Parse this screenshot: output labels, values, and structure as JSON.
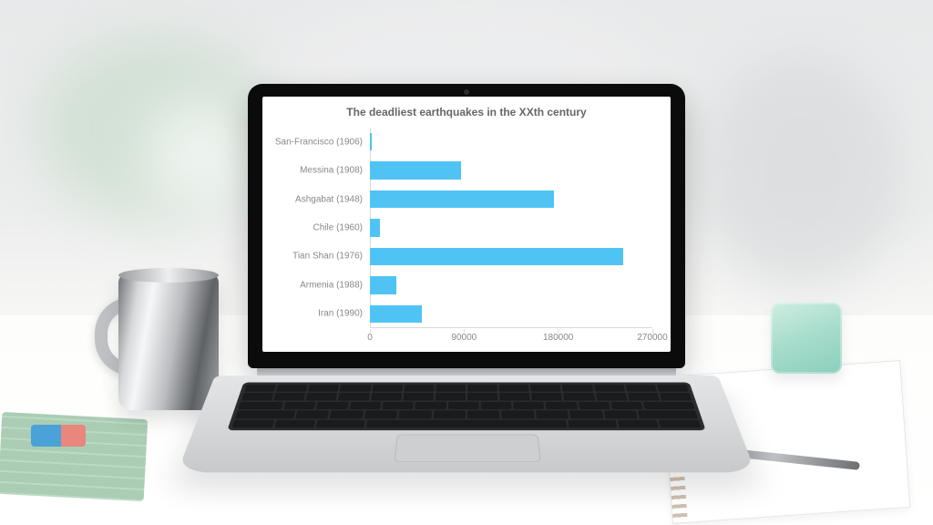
{
  "scene": {
    "background_gradient": [
      "#e8e9ea",
      "#ffffff"
    ],
    "mug_color": "#bfc1c4",
    "speaker_color": "#a6dccb",
    "eraser_colors": [
      "#4aa2d9",
      "#e9867d"
    ],
    "mat_color": "#aacdb4"
  },
  "laptop": {
    "shell_color": "#0b0b0c",
    "base_color": "#d4d6d8",
    "keyboard_color": "#1a1b1c",
    "screen_background": "#ffffff"
  },
  "chart": {
    "type": "bar-horizontal",
    "title": "The deadliest earthquakes in the XXth century",
    "title_fontsize": 12,
    "title_color": "#666666",
    "label_fontsize": 10,
    "label_color": "#888888",
    "bar_color": "#4fc4f4",
    "axis_color": "#d9d9d9",
    "background_color": "#ffffff",
    "x_min": 0,
    "x_max": 270000,
    "x_ticks": [
      0,
      90000,
      180000,
      270000
    ],
    "bar_thickness_ratio": 0.62,
    "categories": [
      "San-Francisco (1906)",
      "Messina (1908)",
      "Ashgabat (1948)",
      "Chile (1960)",
      "Tian Shan (1976)",
      "Armenia (1988)",
      "Iran (1990)"
    ],
    "values": [
      1500,
      87000,
      176000,
      10000,
      242000,
      25000,
      50000
    ]
  }
}
